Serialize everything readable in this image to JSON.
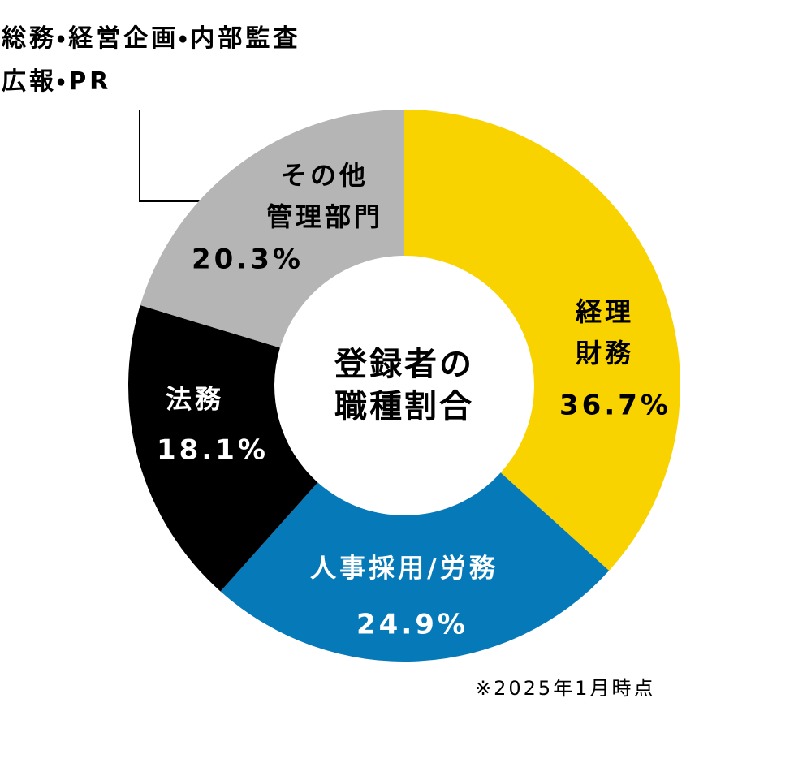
{
  "chart_data": {
    "type": "donut",
    "title": "登録者の\n職種割合",
    "categories": [
      "経理\n財務",
      "人事採用/労務",
      "法務",
      "その他\n管理部門"
    ],
    "values": [
      36.7,
      24.9,
      18.1,
      20.3
    ],
    "value_labels": [
      "36.7%",
      "24.9%",
      "18.1%",
      "20.3%"
    ],
    "colors": [
      "#f9d300",
      "#0679b9",
      "#000000",
      "#b5b5b5"
    ],
    "annotation": "総務・経営企画・内部監査\n広報・PR",
    "note": "※2025年1月時点"
  }
}
